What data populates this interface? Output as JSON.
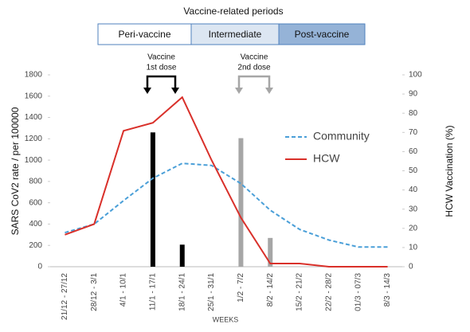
{
  "chart_data": {
    "type": "line",
    "title": "Vaccine-related periods",
    "periods": [
      {
        "label": "Peri-vaccine",
        "color": "#ffffff"
      },
      {
        "label": "Intermediate",
        "color": "#dce6f2"
      },
      {
        "label": "Post-vaccine",
        "color": "#95b3d7"
      }
    ],
    "categories": [
      "21/12 - 27/12",
      "28/12 - 3/1",
      "4/1 - 10/1",
      "11/1 - 17/1",
      "18/1 - 24/1",
      "25/1 - 31/1",
      "1/2 - 7/2",
      "8/2 - 14/2",
      "15/2 - 21/2",
      "22/2 - 28/2",
      "01/3 - 07/3",
      "8/3 - 14/3"
    ],
    "xlabel": "WEEKS",
    "ylabel": "SARS CoV2  rate / per 100000",
    "y2label": "HCW  Vaccination (%)",
    "ylim": [
      0,
      1800
    ],
    "yticks": [
      0,
      200,
      400,
      600,
      800,
      1000,
      1200,
      1400,
      1600,
      1800
    ],
    "y2lim": [
      0,
      100
    ],
    "y2ticks": [
      0,
      10,
      20,
      30,
      40,
      50,
      60,
      70,
      80,
      90,
      100
    ],
    "series": [
      {
        "name": "Community",
        "color": "#4a9fd8",
        "dashed": true,
        "values": [
          320,
          400,
          620,
          830,
          970,
          950,
          780,
          530,
          350,
          250,
          185,
          185
        ]
      },
      {
        "name": "HCW",
        "color": "#d9302a",
        "dashed": false,
        "values": [
          300,
          400,
          1275,
          1350,
          1590,
          1000,
          460,
          30,
          30,
          0,
          0,
          0
        ]
      }
    ],
    "bars": {
      "axis": "y2",
      "values": [
        null,
        null,
        null,
        70,
        11.5,
        null,
        67,
        15,
        null,
        null,
        null,
        null
      ],
      "colors": [
        null,
        null,
        null,
        "#000000",
        "#000000",
        null,
        "#a6a6a6",
        "#a6a6a6",
        null,
        null,
        null,
        null
      ]
    },
    "annotations": [
      {
        "lines": [
          "Vaccine",
          "1st dose"
        ],
        "color": "#000000"
      },
      {
        "lines": [
          "Vaccine",
          "2nd dose"
        ],
        "color": "#a6a6a6"
      }
    ]
  }
}
